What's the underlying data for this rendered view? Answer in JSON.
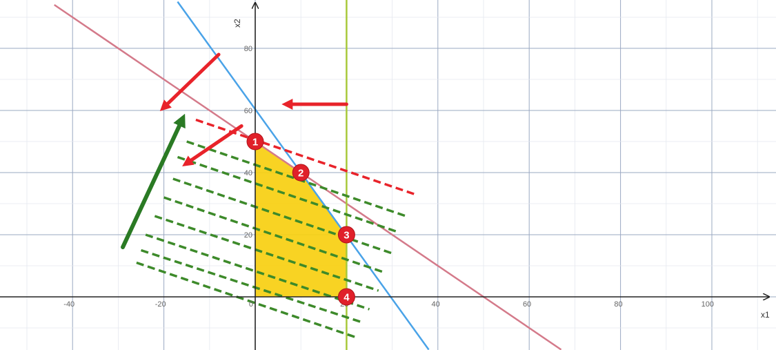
{
  "chart_data": {
    "type": "line",
    "xlabel": "x1",
    "ylabel": "x2",
    "xlim": [
      -55,
      112
    ],
    "ylim": [
      -17,
      95
    ],
    "x_ticks": [
      -40,
      -20,
      0,
      20,
      40,
      60,
      80,
      100
    ],
    "y_ticks": [
      20,
      40,
      60,
      80
    ],
    "grid": true,
    "series": [
      {
        "key": "pink",
        "color": "#d47a8a",
        "points": [
          [
            -44,
            94
          ],
          [
            67,
            -17
          ]
        ]
      },
      {
        "key": "blue",
        "color": "#4aa3e8",
        "points": [
          [
            -17,
            95
          ],
          [
            38,
            -17
          ]
        ]
      },
      {
        "key": "green",
        "color": "#a8c83a",
        "vertical_x": 20
      }
    ],
    "feasible_region": {
      "color": "#f7cf10",
      "vertices": [
        [
          0,
          0
        ],
        [
          0,
          50
        ],
        [
          10,
          40
        ],
        [
          20,
          20
        ],
        [
          20,
          0
        ]
      ]
    },
    "points": [
      {
        "label": "1",
        "x": 0,
        "y": 50
      },
      {
        "label": "2",
        "x": 10,
        "y": 40
      },
      {
        "label": "3",
        "x": 20,
        "y": 20
      },
      {
        "label": "4",
        "x": 20,
        "y": 0
      }
    ],
    "objective_lines": {
      "red": {
        "color": "#e8232a",
        "from": [
          -13,
          57
        ],
        "to": [
          35,
          33
        ]
      },
      "green": {
        "color": "#3d8a2a",
        "segments": [
          [
            [
              -15,
              50
            ],
            [
              33,
              26
            ]
          ],
          [
            [
              -17,
              45
            ],
            [
              31,
              21
            ]
          ],
          [
            [
              -18,
              38
            ],
            [
              30,
              14
            ]
          ],
          [
            [
              -20,
              32
            ],
            [
              28,
              8
            ]
          ],
          [
            [
              -22,
              26
            ],
            [
              27,
              2
            ]
          ],
          [
            [
              -24,
              20
            ],
            [
              25,
              -4
            ]
          ],
          [
            [
              -25,
              15
            ],
            [
              23,
              -8
            ]
          ],
          [
            [
              -26,
              11
            ],
            [
              22,
              -13
            ]
          ]
        ]
      }
    },
    "arrows": [
      {
        "color": "#e8232a",
        "from": [
          -8,
          78
        ],
        "to": [
          -20,
          61
        ]
      },
      {
        "color": "#e8232a",
        "from": [
          20,
          62
        ],
        "to": [
          7,
          62
        ]
      },
      {
        "color": "#e8232a",
        "from": [
          -3,
          55
        ],
        "to": [
          -15,
          43
        ]
      },
      {
        "color": "#2a7a24",
        "from": [
          -29,
          16
        ],
        "to": [
          -16,
          57
        ]
      }
    ]
  }
}
